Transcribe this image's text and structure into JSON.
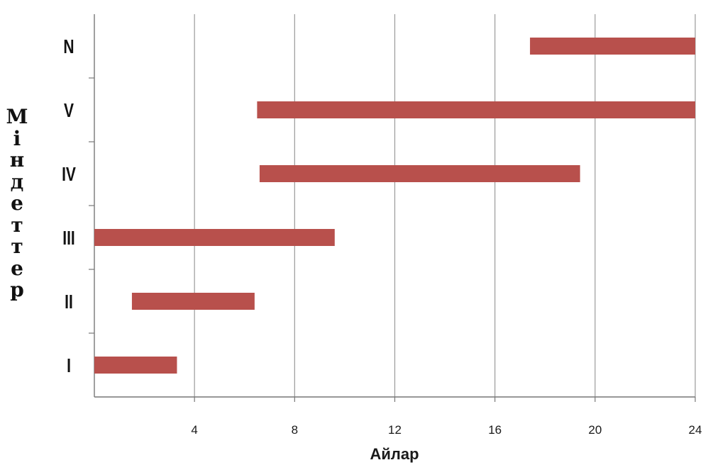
{
  "chart_data": {
    "type": "bar",
    "orientation": "horizontal",
    "subtype": "floating-range",
    "title": "",
    "xlabel": "Айлар",
    "ylabel": "Міндеттер",
    "xlim": [
      0,
      24
    ],
    "x_ticks": [
      4,
      8,
      12,
      16,
      20,
      24
    ],
    "grid": {
      "x": true,
      "y": false
    },
    "categories": [
      "I",
      "II",
      "III",
      "IV",
      "V",
      "N"
    ],
    "series": [
      {
        "ranges": [
          [
            0,
            3.3
          ],
          [
            1.5,
            6.4
          ],
          [
            0,
            9.6
          ],
          [
            6.6,
            19.4
          ],
          [
            6.5,
            24
          ],
          [
            17.4,
            24
          ]
        ]
      }
    ]
  },
  "colors": {
    "bar": "#b8504c",
    "grid": "#9a9a9a",
    "axis": "#777777",
    "text": "#1a1a1a"
  }
}
